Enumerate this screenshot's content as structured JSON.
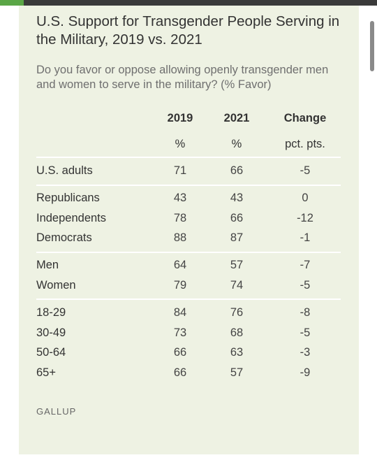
{
  "chart_data": {
    "type": "table",
    "title": "U.S. Support for Transgender People Serving in the Military, 2019 vs. 2021",
    "subtitle": "Do you favor or oppose allowing openly transgender men and women to serve in the military? (% Favor)",
    "columns": [
      {
        "label": "2019",
        "unit": "%"
      },
      {
        "label": "2021",
        "unit": "%"
      },
      {
        "label": "Change",
        "unit": "pct. pts."
      }
    ],
    "groups": [
      {
        "rows": [
          {
            "label": "U.S. adults",
            "values": [
              "71",
              "66",
              "-5"
            ]
          }
        ]
      },
      {
        "rows": [
          {
            "label": "Republicans",
            "values": [
              "43",
              "43",
              "0"
            ]
          },
          {
            "label": "Independents",
            "values": [
              "78",
              "66",
              "-12"
            ]
          },
          {
            "label": "Democrats",
            "values": [
              "88",
              "87",
              "-1"
            ]
          }
        ]
      },
      {
        "rows": [
          {
            "label": "Men",
            "values": [
              "64",
              "57",
              "-7"
            ]
          },
          {
            "label": "Women",
            "values": [
              "79",
              "74",
              "-5"
            ]
          }
        ]
      },
      {
        "rows": [
          {
            "label": "18-29",
            "values": [
              "84",
              "76",
              "-8"
            ]
          },
          {
            "label": "30-49",
            "values": [
              "73",
              "68",
              "-5"
            ]
          },
          {
            "label": "50-64",
            "values": [
              "66",
              "63",
              "-3"
            ]
          },
          {
            "label": "65+",
            "values": [
              "66",
              "57",
              "-9"
            ]
          }
        ]
      }
    ],
    "source": "GALLUP"
  },
  "colors": {
    "card_background": "#eef2e3",
    "top_bar": "#3a3a3a",
    "accent": "#5aa646"
  }
}
